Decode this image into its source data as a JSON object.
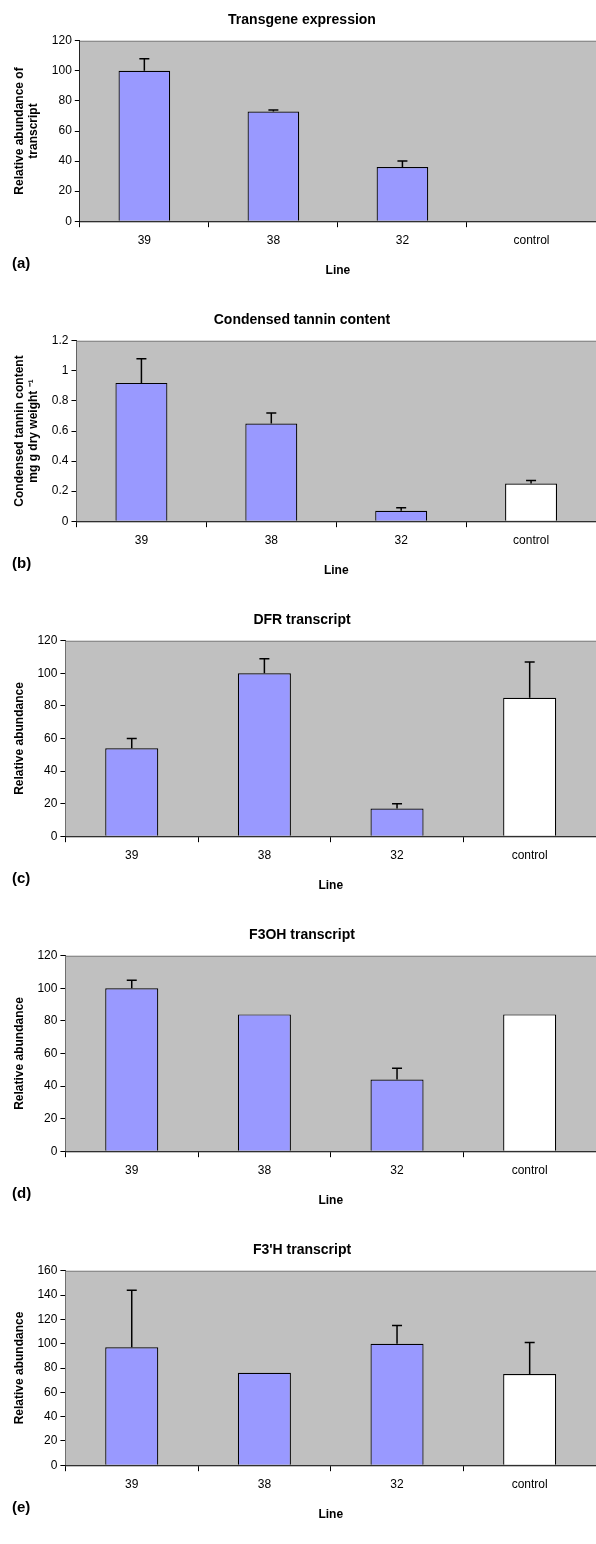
{
  "chart_data": [
    {
      "type": "bar",
      "title": "Transgene expression",
      "xlabel": "Line",
      "ylabel": "Relative abundance of\ntranscript",
      "categories": [
        "39",
        "38",
        "32",
        "control"
      ],
      "values": [
        100,
        73,
        36,
        0
      ],
      "colors": [
        "#9999ff",
        "#9999ff",
        "#9999ff",
        "#ffffff"
      ],
      "errors": [
        [
          100,
          108
        ],
        [
          73,
          74
        ],
        [
          36,
          40
        ],
        null
      ],
      "ylim": [
        0,
        120
      ],
      "yticks": [
        0,
        20,
        40,
        60,
        80,
        100,
        120
      ],
      "grid": false,
      "legend": false,
      "annotations": [
        "(a)"
      ]
    },
    {
      "type": "bar",
      "title": "Condensed tannin content",
      "xlabel": "Line",
      "ylabel": "Condensed tannin content\nmg g dry weight ⁻¹",
      "categories": [
        "39",
        "38",
        "32",
        "control"
      ],
      "values": [
        0.92,
        0.65,
        0.07,
        0.25
      ],
      "colors": [
        "#9999ff",
        "#9999ff",
        "#9999ff",
        "#ffffff"
      ],
      "errors": [
        [
          0.92,
          1.08
        ],
        [
          0.65,
          0.72
        ],
        [
          0.07,
          0.09
        ],
        [
          0.25,
          0.27
        ]
      ],
      "ylim": [
        0,
        1.2
      ],
      "yticks": [
        0,
        0.2,
        0.4,
        0.6,
        0.8,
        1,
        1.2
      ],
      "grid": false,
      "legend": false,
      "annotations": [
        "(b)"
      ]
    },
    {
      "type": "bar",
      "title": "DFR transcript",
      "xlabel": "Line",
      "ylabel": "Relative abundance",
      "categories": [
        "39",
        "38",
        "32",
        "control"
      ],
      "values": [
        54,
        100,
        17,
        85
      ],
      "colors": [
        "#9999ff",
        "#9999ff",
        "#9999ff",
        "#ffffff"
      ],
      "errors": [
        [
          54,
          60
        ],
        [
          100,
          109
        ],
        [
          17,
          20
        ],
        [
          85,
          107
        ]
      ],
      "ylim": [
        0,
        120
      ],
      "yticks": [
        0,
        20,
        40,
        60,
        80,
        100,
        120
      ],
      "grid": false,
      "legend": false,
      "annotations": [
        "(c)"
      ]
    },
    {
      "type": "bar",
      "title": "F3OH transcript",
      "xlabel": "Line",
      "ylabel": "Relative abundance",
      "categories": [
        "39",
        "38",
        "32",
        "control"
      ],
      "values": [
        100,
        84,
        44,
        84
      ],
      "colors": [
        "#9999ff",
        "#9999ff",
        "#9999ff",
        "#ffffff"
      ],
      "errors": [
        [
          100,
          105
        ],
        null,
        [
          44,
          51
        ],
        null
      ],
      "ylim": [
        0,
        120
      ],
      "yticks": [
        0,
        20,
        40,
        60,
        80,
        100,
        120
      ],
      "grid": false,
      "legend": false,
      "annotations": [
        "(d)"
      ]
    },
    {
      "type": "bar",
      "title": "F3'H transcript",
      "xlabel": "Line",
      "ylabel": "Relative abundance",
      "categories": [
        "39",
        "38",
        "32",
        "control"
      ],
      "values": [
        97,
        76,
        100,
        75
      ],
      "colors": [
        "#9999ff",
        "#9999ff",
        "#9999ff",
        "#ffffff"
      ],
      "errors": [
        [
          97,
          144
        ],
        null,
        [
          100,
          115
        ],
        [
          75,
          101
        ]
      ],
      "ylim": [
        0,
        160
      ],
      "yticks": [
        0,
        20,
        40,
        60,
        80,
        100,
        120,
        140,
        160
      ],
      "grid": false,
      "legend": false,
      "annotations": [
        "(e)"
      ]
    }
  ]
}
